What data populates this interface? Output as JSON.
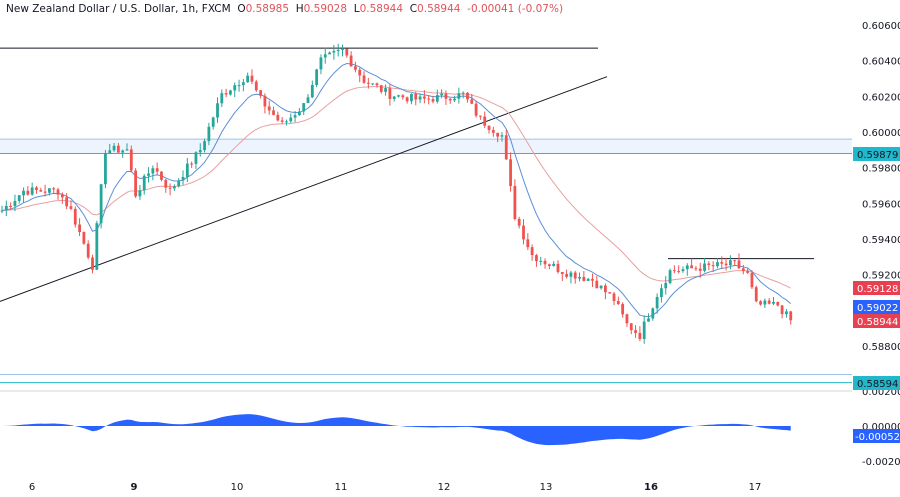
{
  "header": {
    "symbol": "New Zealand Dollar / U.S. Dollar, 1h, FXCM",
    "open_label": "O",
    "open": "0.58985",
    "high_label": "H",
    "high": "0.59028",
    "low_label": "L",
    "low": "0.58944",
    "close_label": "C",
    "close": "0.58944",
    "change": "-0.00041 (-0.07%)"
  },
  "chart_data": {
    "type": "candlestick",
    "x_tick_labels": [
      "6",
      "9",
      "10",
      "11",
      "12",
      "13",
      "16",
      "17"
    ],
    "price_axis": {
      "range": [
        0.5855,
        0.6068
      ],
      "ticks": [
        "0.60600",
        "0.60400",
        "0.60200",
        "0.60000",
        "0.59800",
        "0.59600",
        "0.59400",
        "0.59200",
        "0.58800"
      ]
    },
    "close_path_by_candle": [
      [
        0,
        0.5956
      ],
      [
        5,
        0.5967
      ],
      [
        13,
        0.5967
      ],
      [
        16,
        0.5956
      ],
      [
        21,
        0.5925
      ],
      [
        24,
        0.599
      ],
      [
        29,
        0.599
      ],
      [
        31,
        0.5965
      ],
      [
        35,
        0.5981
      ],
      [
        39,
        0.5967
      ],
      [
        46,
        0.599
      ],
      [
        51,
        0.6021
      ],
      [
        57,
        0.6032
      ],
      [
        60,
        0.6018
      ],
      [
        65,
        0.6004
      ],
      [
        70,
        0.6015
      ],
      [
        74,
        0.604
      ],
      [
        79,
        0.6046
      ],
      [
        84,
        0.6029
      ],
      [
        90,
        0.6021
      ],
      [
        97,
        0.6018
      ],
      [
        107,
        0.6021
      ],
      [
        111,
        0.6007
      ],
      [
        116,
        0.5998
      ],
      [
        119,
        0.5953
      ],
      [
        123,
        0.5931
      ],
      [
        130,
        0.5922
      ],
      [
        137,
        0.5917
      ],
      [
        142,
        0.5906
      ],
      [
        145,
        0.5892
      ],
      [
        148,
        0.5886
      ],
      [
        152,
        0.5909
      ],
      [
        155,
        0.5922
      ],
      [
        162,
        0.5924
      ],
      [
        170,
        0.5926
      ],
      [
        173,
        0.592
      ],
      [
        175,
        0.5903
      ],
      [
        180,
        0.5903
      ],
      [
        183,
        0.5894
      ]
    ],
    "levels": {
      "resistance_top": 0.6047,
      "zone": [
        0.59879,
        0.5996
      ],
      "support": 0.58594,
      "support_upper": 0.5864,
      "range_top": 0.5929
    },
    "trendline": {
      "from": 0.5905,
      "to": 0.6031
    },
    "price_badges": [
      {
        "value": "0.59879",
        "color": "#22b8cc"
      },
      {
        "value": "0.59128",
        "color": "#e84050"
      },
      {
        "value": "0.59022",
        "color": "#2962ff"
      },
      {
        "value": "0.58944",
        "color": "#e84050"
      },
      {
        "value": "0.58594",
        "color": "#22b8cc"
      }
    ],
    "oscillator": {
      "ticks": [
        "0.00200",
        "0.00000",
        "-0.00200"
      ],
      "last": "-0.00052",
      "color": "#2962ff"
    },
    "colors": {
      "up": "#26a69a",
      "down": "#ef5350",
      "fast_ma": "#5b8fd6",
      "slow_ma": "#e8a0a0"
    }
  }
}
